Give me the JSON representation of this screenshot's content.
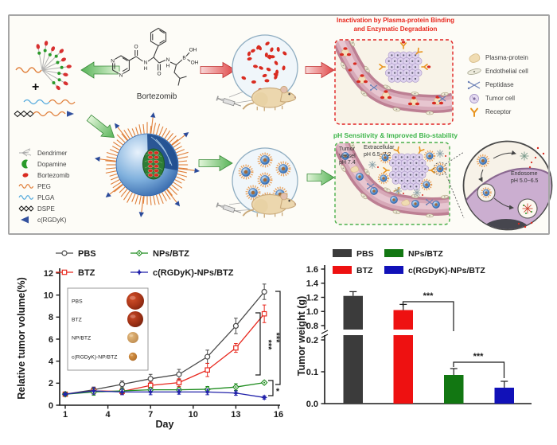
{
  "colors": {
    "panel_border": "#a5a5a5",
    "red_accent": "#e8281e",
    "green_accent": "#3db54a",
    "vessel": "#bd7f93",
    "nanoparticle_blue": "#2f62a8",
    "peg_orange": "#e07f3a"
  },
  "schematic": {
    "plus_sign": "+",
    "bortezomib_label": "Bortezomib",
    "atoms": {
      "n1": "N",
      "n2": "N",
      "o1": "O",
      "n3": "N",
      "h1": "H",
      "o2": "O",
      "n4": "N",
      "h2": "H",
      "b": "B",
      "oh1": "OH",
      "oh2": "OH"
    },
    "red_title": {
      "line1": "Inactivation by Plasma-protein Binding",
      "line2": "and Enzymatic Degradation"
    },
    "green_title": {
      "text": "pH Sensitivity & Improved Bio-stability"
    },
    "tumor_vessel_label": {
      "line1": "Tumor",
      "line2": "Vessel",
      "line3": "pH 7.4"
    },
    "extracellular_label": {
      "line1": "Extracellular",
      "line2": "pH 6.5~7.2"
    },
    "endosome_label": {
      "line1": "Endosome",
      "line2": "pH 5.0~6.5"
    },
    "right_legend": [
      {
        "icon": "plasma-protein-icon",
        "label": "Plasma-protein"
      },
      {
        "icon": "endothelial-cell-icon",
        "label": "Endothelial cell"
      },
      {
        "icon": "peptidase-icon",
        "label": "Peptidase"
      },
      {
        "icon": "tumor-cell-icon",
        "label": "Tumor cell"
      },
      {
        "icon": "receptor-icon",
        "label": "Receptor"
      }
    ],
    "left_legend": [
      {
        "icon": "dendrimer-icon",
        "label": "Dendrimer"
      },
      {
        "icon": "dopamine-icon",
        "label": "Dopamine"
      },
      {
        "icon": "bortezomib-icon",
        "label": "Bortezomib"
      },
      {
        "icon": "peg-icon",
        "label": "PEG"
      },
      {
        "icon": "plga-icon",
        "label": "PLGA"
      },
      {
        "icon": "dspe-icon",
        "label": "DSPE"
      },
      {
        "icon": "crgdyk-icon",
        "label": "c(RGDyK)"
      }
    ]
  },
  "chart_data": [
    {
      "type": "line",
      "xlabel": "Day",
      "ylabel": "Relative tumor volume(%)",
      "x": [
        1,
        3,
        5,
        7,
        9,
        11,
        13,
        15
      ],
      "xticks": [
        1,
        4,
        7,
        10,
        13,
        16
      ],
      "yticks": [
        0,
        2,
        4,
        6,
        8,
        10,
        12
      ],
      "ylim": [
        0,
        12
      ],
      "xlim": [
        0,
        16.5
      ],
      "grid": false,
      "legend_position": "top",
      "series": [
        {
          "name": "PBS",
          "color": "#4a4a4a",
          "marker": "circle",
          "values": [
            1.0,
            1.4,
            1.9,
            2.4,
            2.8,
            4.4,
            7.2,
            10.3
          ],
          "errors": [
            0.1,
            0.25,
            0.3,
            0.4,
            0.45,
            0.6,
            0.7,
            0.7
          ]
        },
        {
          "name": "BTZ",
          "color": "#e8281e",
          "marker": "square",
          "values": [
            1.0,
            1.3,
            1.25,
            1.8,
            2.05,
            3.2,
            5.2,
            8.3
          ],
          "errors": [
            0.1,
            0.3,
            0.25,
            0.3,
            0.35,
            0.6,
            0.4,
            0.8
          ]
        },
        {
          "name": "NPs/BTZ",
          "color": "#1e8c1e",
          "marker": "diamond",
          "values": [
            1.0,
            1.2,
            1.3,
            1.4,
            1.4,
            1.45,
            1.65,
            2.05
          ],
          "errors": [
            0.1,
            0.3,
            0.2,
            0.2,
            0.2,
            0.25,
            0.3,
            0.15
          ]
        },
        {
          "name": "c(RGDyK)-NPs/BTZ",
          "color": "#2222aa",
          "marker": "star",
          "values": [
            1.0,
            1.3,
            1.2,
            1.2,
            1.2,
            1.2,
            1.1,
            0.7
          ],
          "errors": [
            0.1,
            0.3,
            0.25,
            0.25,
            0.2,
            0.25,
            0.2,
            0.15
          ]
        }
      ],
      "inset_labels": [
        "PBS",
        "BTZ",
        "NP/BTZ",
        "c(RGDyK)-NP/BTZ"
      ],
      "significance": [
        {
          "compare": "PBS vs c(RGDyK)-NPs/BTZ",
          "label": "***"
        },
        {
          "compare": "BTZ vs NPs/BTZ",
          "label": "***"
        },
        {
          "compare": "NPs/BTZ vs c(RGDyK)-NPs/BTZ",
          "label": "*"
        }
      ]
    },
    {
      "type": "bar",
      "ylabel": "Tumor weight (g)",
      "categories": [
        "PBS",
        "BTZ",
        "NPs/BTZ",
        "c(RGDyK)-NPs/BTZ"
      ],
      "values": [
        1.22,
        1.02,
        0.09,
        0.05
      ],
      "errors": [
        0.06,
        0.08,
        0.02,
        0.02
      ],
      "colors": [
        "#3b3b3b",
        "#ee1111",
        "#127712",
        "#1111b8"
      ],
      "broken_axis": {
        "lower_range": [
          0.0,
          0.2
        ],
        "lower_ticks": [
          0.0,
          0.1,
          0.2
        ],
        "upper_range": [
          0.8,
          1.6
        ],
        "upper_ticks": [
          0.8,
          1.0,
          1.2,
          1.4,
          1.6
        ]
      },
      "significance": [
        {
          "compare": "BTZ vs NPs/BTZ",
          "label": "***"
        },
        {
          "compare": "NPs/BTZ vs c(RGDyK)-NPs/BTZ",
          "label": "***"
        }
      ]
    }
  ]
}
